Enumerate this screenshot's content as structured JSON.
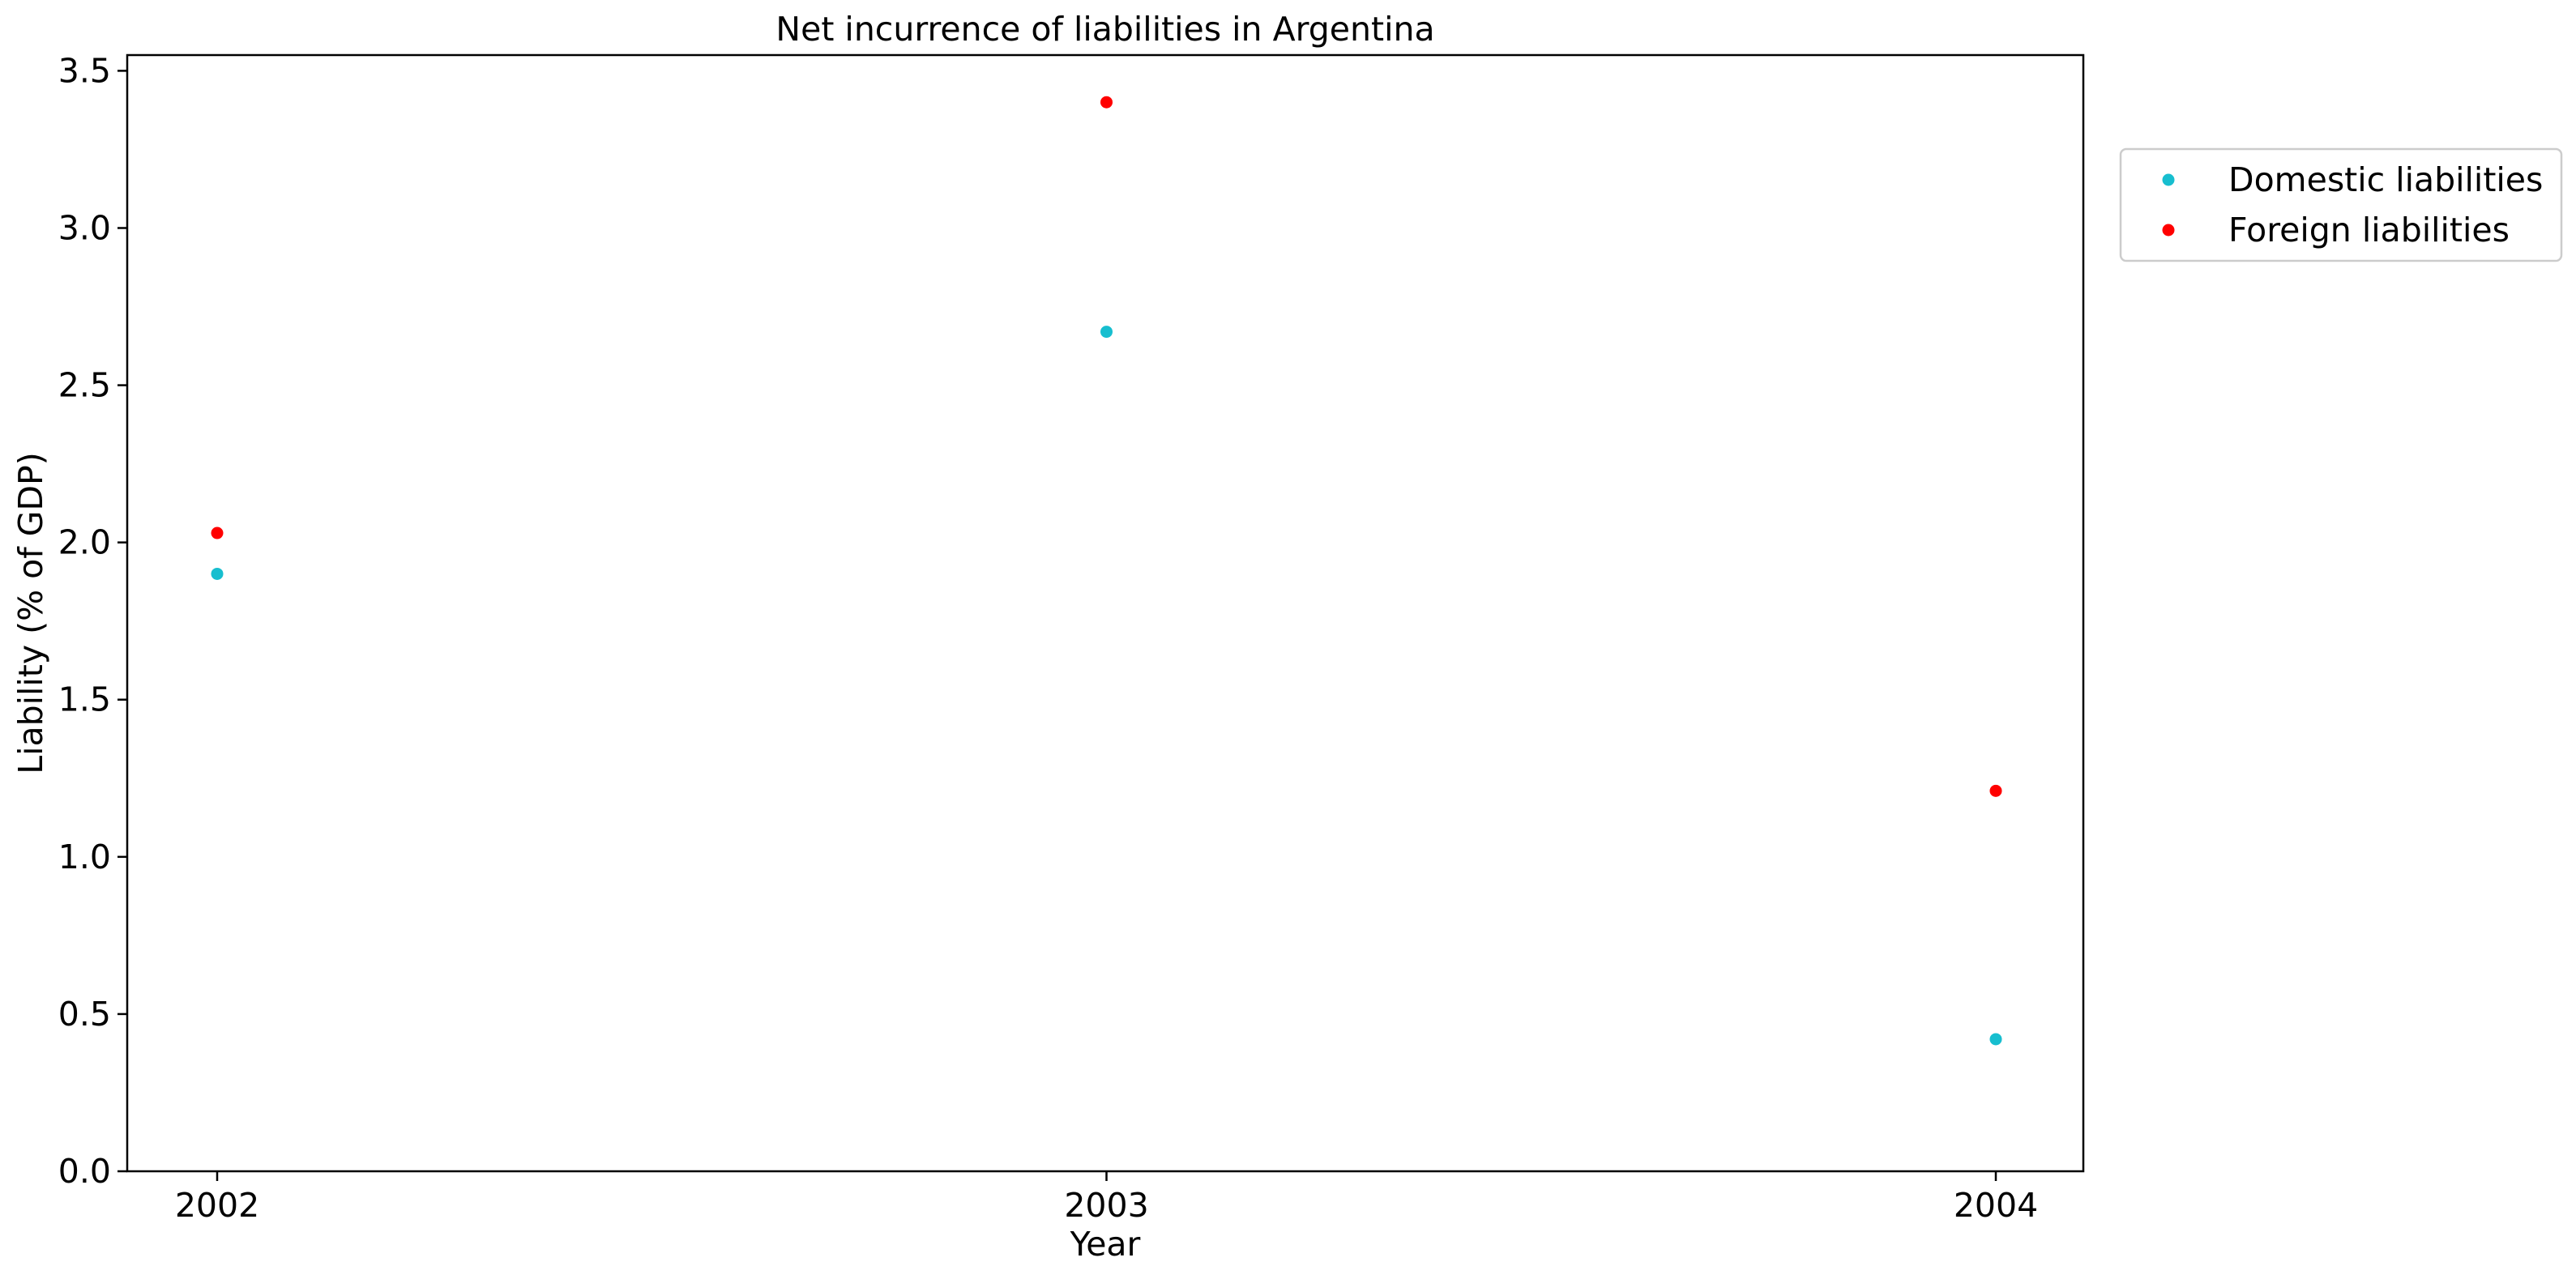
{
  "chart_data": {
    "type": "scatter",
    "title": "Net incurrence of liabilities in Argentina",
    "xlabel": "Year",
    "ylabel": "Liability (% of GDP)",
    "categories": [
      "2002",
      "2003",
      "2004"
    ],
    "ylim": [
      0,
      3.55
    ],
    "yticks": [
      "0.0",
      "0.5",
      "1.0",
      "1.5",
      "2.0",
      "2.5",
      "3.0",
      "3.5"
    ],
    "grid": false,
    "legend_position": "outside-top-right",
    "series": [
      {
        "name": "Domestic liabilities",
        "color": "#17becf",
        "values": [
          1.9,
          2.67,
          0.42
        ]
      },
      {
        "name": "Foreign liabilities",
        "color": "#ff0000",
        "values": [
          2.03,
          3.4,
          1.21
        ]
      }
    ]
  }
}
